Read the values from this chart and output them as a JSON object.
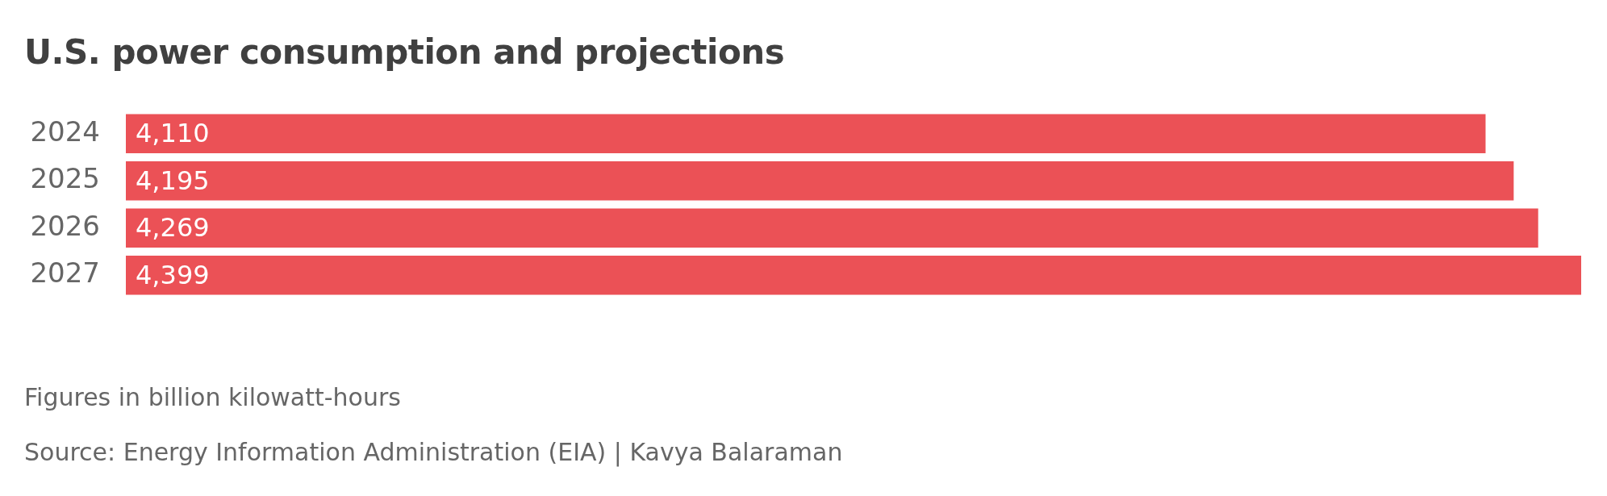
{
  "chart_data": {
    "type": "bar",
    "orientation": "horizontal",
    "title": "U.S. power consumption and projections",
    "categories": [
      "2024",
      "2025",
      "2026",
      "2027"
    ],
    "values": [
      4110,
      4195,
      4269,
      4399
    ],
    "color": "#eb5156",
    "value_labels": [
      "4,110",
      "4,195",
      "4,269",
      "4,399"
    ],
    "tick_labels": "y",
    "legend": false,
    "annotations": [
      "Figures in billion kilowatt-hours",
      "Source: Energy Information Administration (EIA) | Kavya Balaraman"
    ]
  }
}
